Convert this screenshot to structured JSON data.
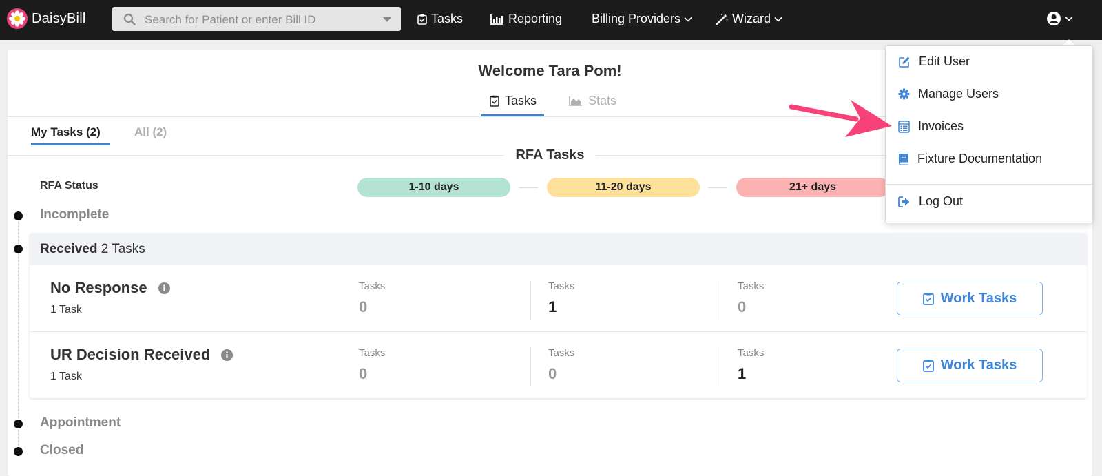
{
  "app": {
    "name": "DaisyBill"
  },
  "colors": {
    "accent": "#3d82d1",
    "pill_green": "#b5e3d3",
    "pill_yellow": "#fde19b",
    "pill_red": "#fbb2b2",
    "annotation_arrow": "#f7437a"
  },
  "topnav": {
    "search_placeholder": "Search for Patient or enter Bill ID",
    "items": {
      "tasks": "Tasks",
      "reporting": "Reporting",
      "billing_providers": "Billing Providers",
      "wizard": "Wizard"
    }
  },
  "header": {
    "welcome": "Welcome Tara Pom!",
    "tabs": {
      "tasks": "Tasks",
      "stats": "Stats"
    }
  },
  "subtabs": {
    "mine": "My Tasks (2)",
    "all": "All (2)"
  },
  "section": {
    "title": "RFA Tasks",
    "status_label": "RFA Status"
  },
  "age_buckets": [
    "1-10 days",
    "11-20 days",
    "21+ days"
  ],
  "stages": {
    "incomplete": "Incomplete",
    "received": {
      "name": "Received",
      "count": "2 Tasks"
    },
    "appointment": "Appointment",
    "closed": "Closed"
  },
  "task_rows": [
    {
      "name": "No Response",
      "count": "1 Task",
      "columns": [
        {
          "label": "Tasks",
          "value": "0"
        },
        {
          "label": "Tasks",
          "value": "1"
        },
        {
          "label": "Tasks",
          "value": "0"
        }
      ],
      "button": "Work Tasks"
    },
    {
      "name": "UR Decision Received",
      "count": "1 Task",
      "columns": [
        {
          "label": "Tasks",
          "value": "0"
        },
        {
          "label": "Tasks",
          "value": "0"
        },
        {
          "label": "Tasks",
          "value": "1"
        }
      ],
      "button": "Work Tasks"
    }
  ],
  "user_dropdown": {
    "items": [
      {
        "label": "Edit User",
        "icon": "edit-icon"
      },
      {
        "label": "Manage Users",
        "icon": "gear-icon"
      },
      {
        "label": "Invoices",
        "icon": "invoice-icon"
      },
      {
        "label": "Fixture Documentation",
        "icon": "book-icon"
      },
      {
        "label": "Log Out",
        "icon": "logout-icon"
      }
    ]
  }
}
